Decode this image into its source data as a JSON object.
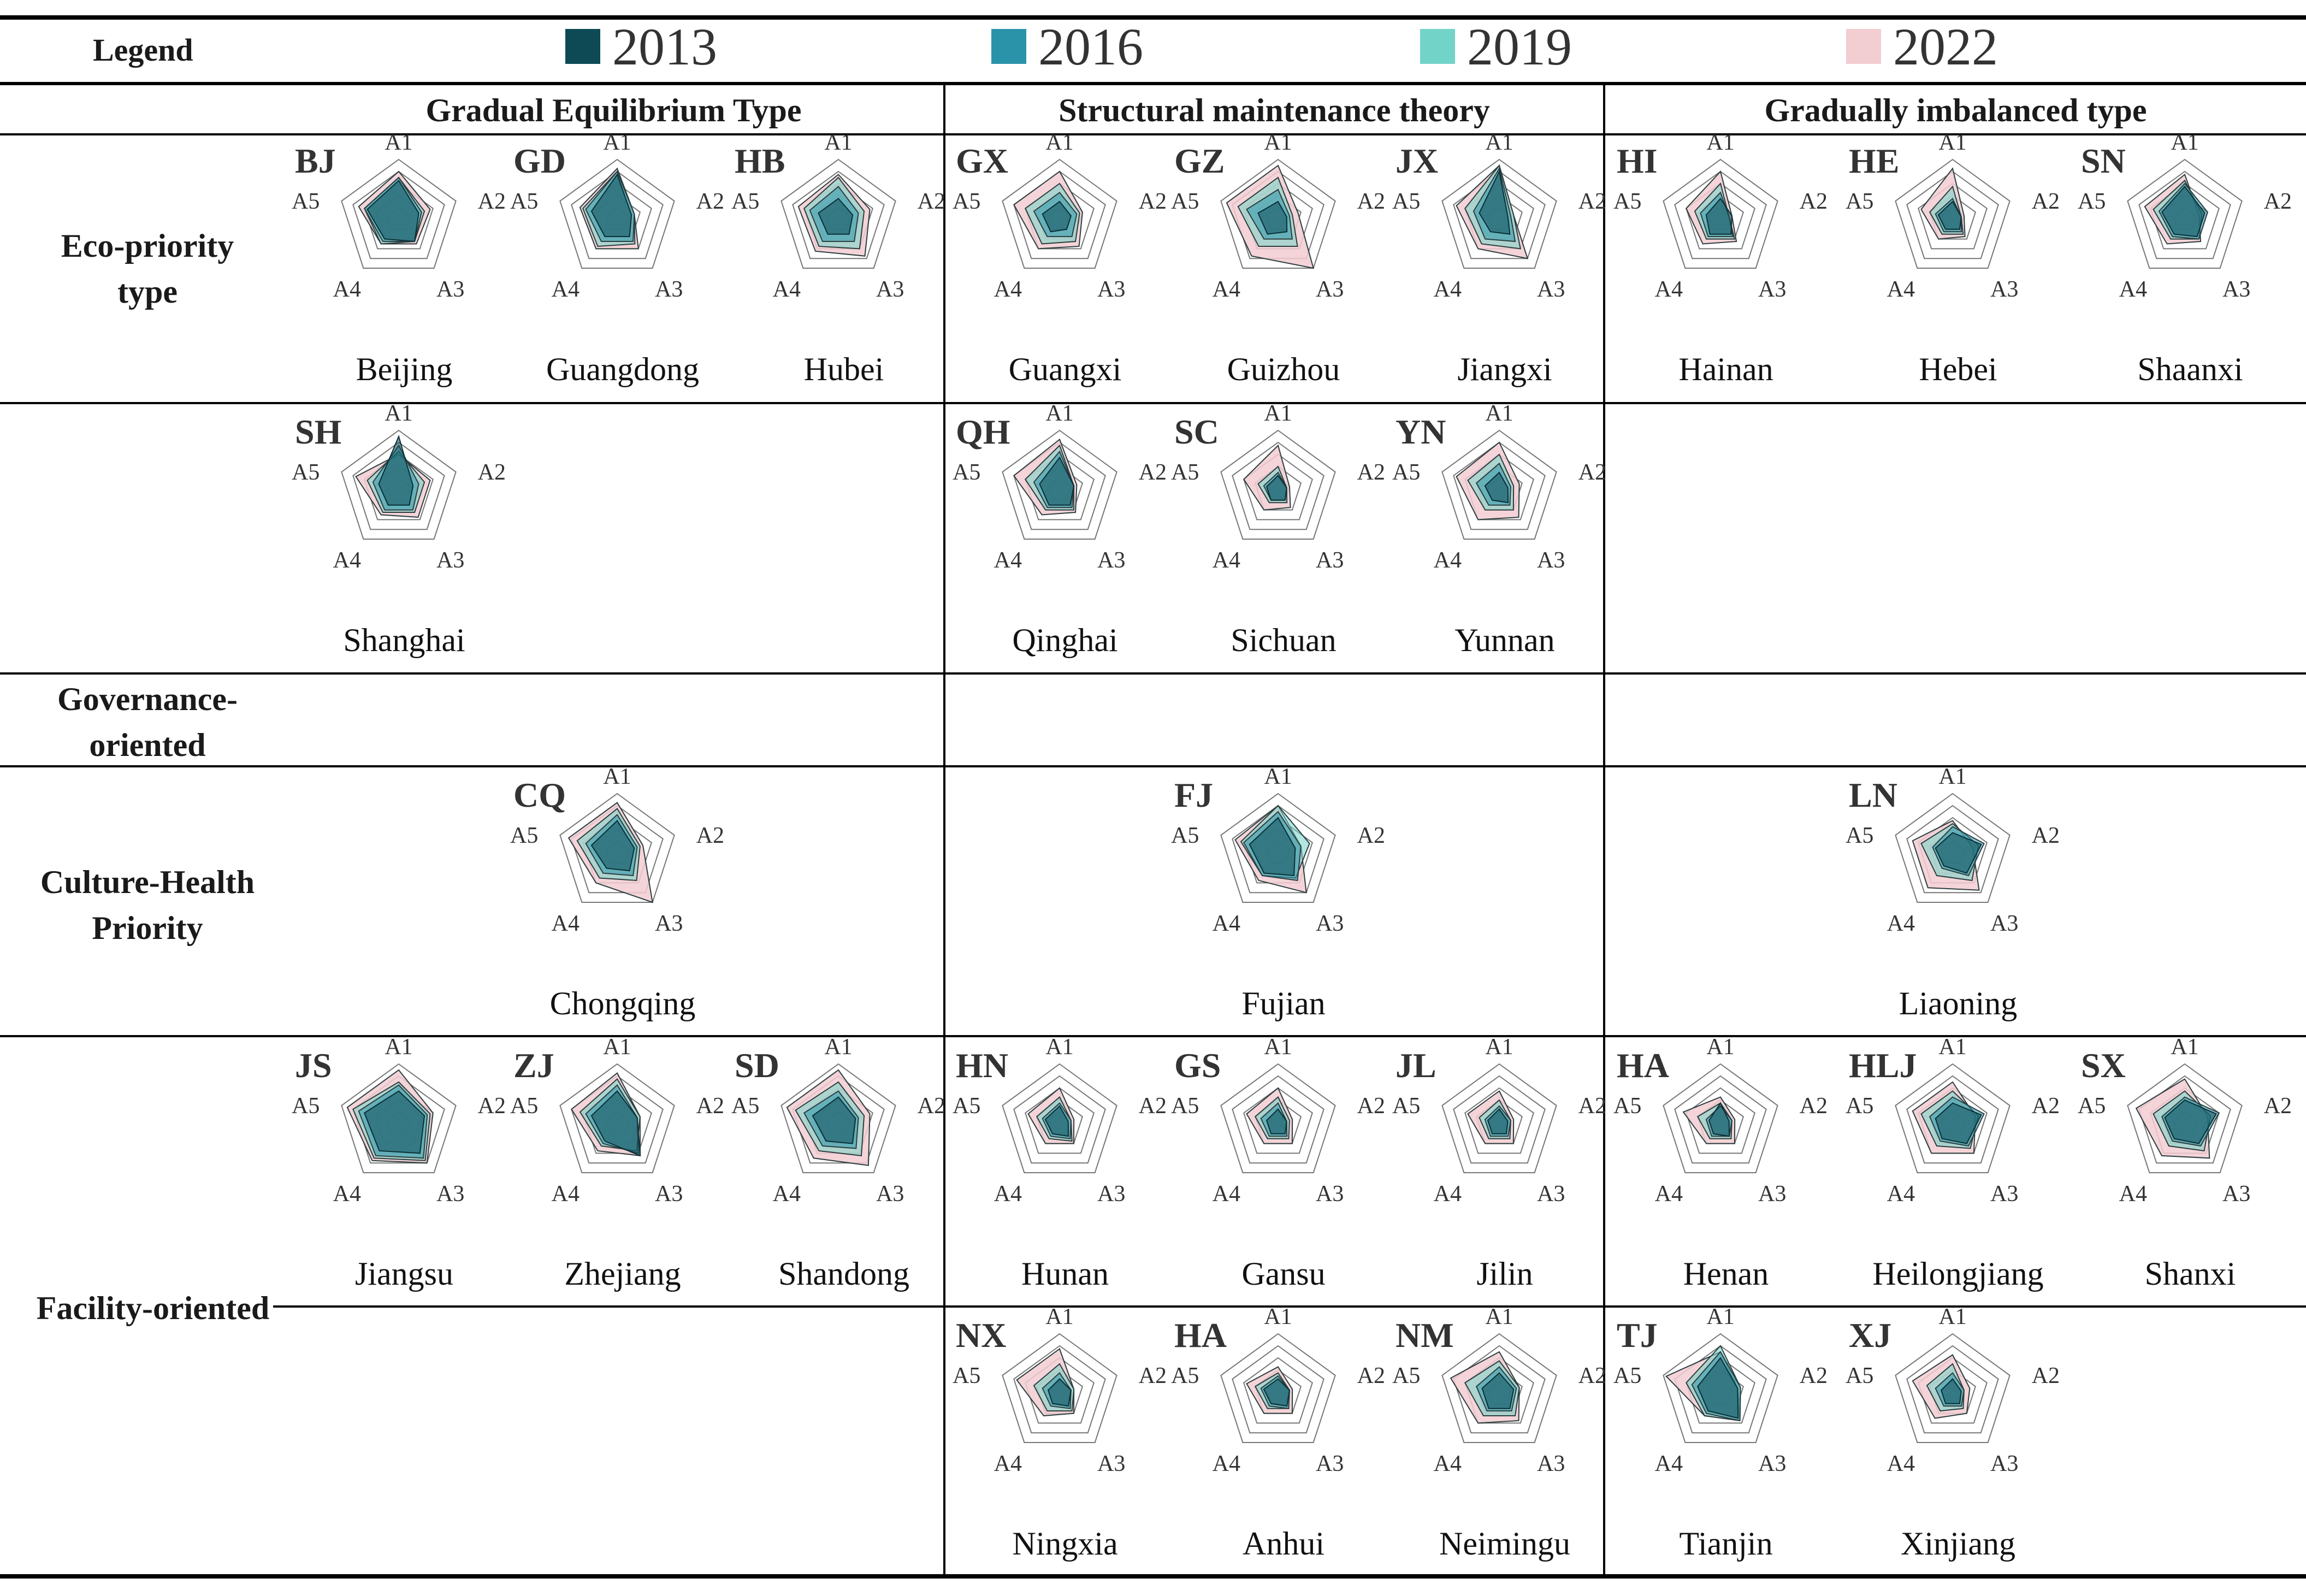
{
  "legend": {
    "label": "Legend",
    "years": [
      "2013",
      "2016",
      "2019",
      "2022"
    ],
    "colors": [
      "#0d4a56",
      "#2a93a9",
      "#72d3c9",
      "#f2cdd1"
    ]
  },
  "groups": [
    "Gradual Equilibrium Type",
    "Structural maintenance theory",
    "Gradually imbalanced type"
  ],
  "row_labels": {
    "eco": "Eco-priority type",
    "governance": "Governance-oriented",
    "culture": "Culture-Health Priority",
    "facility": "Facility-oriented"
  },
  "axes": [
    "A1",
    "A2",
    "A3",
    "A4",
    "A5"
  ],
  "chart_data": {
    "type": "radar",
    "axes": [
      "A1",
      "A2",
      "A3",
      "A4",
      "A5"
    ],
    "series_names": [
      "2013",
      "2016",
      "2019",
      "2022"
    ],
    "provinces": [
      {
        "code": "BJ",
        "name": "Beijing",
        "values": [
          [
            0.65,
            0.35,
            0.45,
            0.4,
            0.55
          ],
          [
            0.7,
            0.4,
            0.45,
            0.45,
            0.6
          ],
          [
            0.7,
            0.45,
            0.45,
            0.5,
            0.6
          ],
          [
            0.8,
            0.55,
            0.5,
            0.5,
            0.7
          ]
        ]
      },
      {
        "code": "GD",
        "name": "Guangdong",
        "values": [
          [
            0.75,
            0.25,
            0.35,
            0.35,
            0.45
          ],
          [
            0.8,
            0.3,
            0.45,
            0.45,
            0.55
          ],
          [
            0.8,
            0.3,
            0.5,
            0.55,
            0.6
          ],
          [
            0.85,
            0.3,
            0.6,
            0.6,
            0.65
          ]
        ]
      },
      {
        "code": "HB",
        "name": "Hubei",
        "values": [
          [
            0.35,
            0.25,
            0.3,
            0.3,
            0.35
          ],
          [
            0.55,
            0.35,
            0.45,
            0.45,
            0.5
          ],
          [
            0.7,
            0.45,
            0.6,
            0.55,
            0.6
          ],
          [
            0.75,
            0.55,
            0.75,
            0.65,
            0.7
          ]
        ]
      },
      {
        "code": "GX",
        "name": "Guangxi",
        "values": [
          [
            0.3,
            0.2,
            0.2,
            0.25,
            0.3
          ],
          [
            0.45,
            0.3,
            0.35,
            0.35,
            0.45
          ],
          [
            0.6,
            0.35,
            0.45,
            0.5,
            0.6
          ],
          [
            0.8,
            0.4,
            0.55,
            0.6,
            0.8
          ]
        ]
      },
      {
        "code": "GZ",
        "name": "Guizhou",
        "values": [
          [
            0.3,
            0.15,
            0.25,
            0.3,
            0.35
          ],
          [
            0.5,
            0.2,
            0.4,
            0.4,
            0.55
          ],
          [
            0.7,
            0.25,
            0.55,
            0.55,
            0.7
          ],
          [
            0.9,
            0.35,
            1.0,
            0.75,
            0.9
          ]
        ]
      },
      {
        "code": "JX",
        "name": "Jiangxi",
        "values": [
          [
            0.8,
            0.15,
            0.3,
            0.25,
            0.35
          ],
          [
            0.85,
            0.2,
            0.45,
            0.4,
            0.45
          ],
          [
            0.9,
            0.25,
            0.6,
            0.5,
            0.6
          ],
          [
            0.9,
            0.25,
            0.8,
            0.6,
            0.75
          ]
        ]
      },
      {
        "code": "HI",
        "name": "Hainan",
        "values": [
          [
            0.35,
            0.2,
            0.3,
            0.3,
            0.25
          ],
          [
            0.45,
            0.15,
            0.35,
            0.35,
            0.35
          ],
          [
            0.6,
            0.15,
            0.4,
            0.4,
            0.45
          ],
          [
            0.8,
            0.2,
            0.45,
            0.5,
            0.6
          ]
        ]
      },
      {
        "code": "HE",
        "name": "Hebei",
        "values": [
          [
            0.3,
            0.15,
            0.2,
            0.2,
            0.25
          ],
          [
            0.35,
            0.15,
            0.25,
            0.25,
            0.3
          ],
          [
            0.55,
            0.15,
            0.3,
            0.3,
            0.4
          ],
          [
            0.85,
            0.2,
            0.35,
            0.4,
            0.55
          ]
        ]
      },
      {
        "code": "SN",
        "name": "Shaanxi",
        "values": [
          [
            0.55,
            0.35,
            0.35,
            0.3,
            0.4
          ],
          [
            0.6,
            0.4,
            0.4,
            0.35,
            0.45
          ],
          [
            0.65,
            0.3,
            0.4,
            0.4,
            0.55
          ],
          [
            0.75,
            0.25,
            0.45,
            0.5,
            0.7
          ]
        ]
      },
      {
        "code": "SH",
        "name": "Shanghai",
        "values": [
          [
            0.9,
            0.25,
            0.3,
            0.3,
            0.35
          ],
          [
            0.75,
            0.35,
            0.4,
            0.4,
            0.45
          ],
          [
            0.65,
            0.45,
            0.45,
            0.45,
            0.55
          ],
          [
            0.6,
            0.55,
            0.55,
            0.5,
            0.75
          ]
        ]
      },
      {
        "code": "QH",
        "name": "Qinghai",
        "values": [
          [
            0.55,
            0.25,
            0.3,
            0.3,
            0.35
          ],
          [
            0.65,
            0.25,
            0.35,
            0.35,
            0.45
          ],
          [
            0.75,
            0.25,
            0.4,
            0.4,
            0.6
          ],
          [
            0.85,
            0.3,
            0.45,
            0.5,
            0.8
          ]
        ]
      },
      {
        "code": "SC",
        "name": "Sichuan",
        "values": [
          [
            0.25,
            0.15,
            0.2,
            0.2,
            0.2
          ],
          [
            0.3,
            0.15,
            0.2,
            0.2,
            0.25
          ],
          [
            0.4,
            0.15,
            0.25,
            0.25,
            0.35
          ],
          [
            0.75,
            0.2,
            0.35,
            0.4,
            0.6
          ]
        ]
      },
      {
        "code": "YN",
        "name": "Yunnan",
        "values": [
          [
            0.3,
            0.15,
            0.25,
            0.2,
            0.25
          ],
          [
            0.45,
            0.2,
            0.3,
            0.3,
            0.4
          ],
          [
            0.6,
            0.25,
            0.4,
            0.4,
            0.55
          ],
          [
            0.8,
            0.35,
            0.55,
            0.6,
            0.75
          ]
        ]
      },
      {
        "code": "CQ",
        "name": "Chongqing",
        "values": [
          [
            0.55,
            0.3,
            0.35,
            0.3,
            0.45
          ],
          [
            0.65,
            0.35,
            0.45,
            0.4,
            0.55
          ],
          [
            0.75,
            0.4,
            0.55,
            0.5,
            0.7
          ],
          [
            0.85,
            0.45,
            1.0,
            0.6,
            0.85
          ]
        ]
      },
      {
        "code": "FJ",
        "name": "Fujian",
        "values": [
          [
            0.6,
            0.3,
            0.45,
            0.4,
            0.5
          ],
          [
            0.7,
            0.4,
            0.55,
            0.45,
            0.6
          ],
          [
            0.8,
            0.55,
            0.5,
            0.45,
            0.65
          ],
          [
            0.8,
            0.4,
            0.8,
            0.55,
            0.75
          ]
        ]
      },
      {
        "code": "LN",
        "name": "Liaoning",
        "values": [
          [
            0.35,
            0.5,
            0.4,
            0.25,
            0.3
          ],
          [
            0.45,
            0.55,
            0.45,
            0.3,
            0.35
          ],
          [
            0.5,
            0.45,
            0.55,
            0.45,
            0.55
          ],
          [
            0.55,
            0.35,
            0.75,
            0.7,
            0.7
          ]
        ]
      },
      {
        "code": "JS",
        "name": "Jiangsu",
        "values": [
          [
            0.55,
            0.45,
            0.6,
            0.55,
            0.6
          ],
          [
            0.65,
            0.5,
            0.7,
            0.65,
            0.7
          ],
          [
            0.7,
            0.55,
            0.75,
            0.7,
            0.8
          ],
          [
            0.9,
            0.6,
            0.8,
            0.75,
            0.9
          ]
        ]
      },
      {
        "code": "ZJ",
        "name": "Zhejiang",
        "values": [
          [
            0.55,
            0.35,
            0.65,
            0.35,
            0.45
          ],
          [
            0.65,
            0.35,
            0.6,
            0.4,
            0.55
          ],
          [
            0.75,
            0.4,
            0.55,
            0.45,
            0.65
          ],
          [
            0.85,
            0.4,
            0.65,
            0.55,
            0.8
          ]
        ]
      },
      {
        "code": "SD",
        "name": "Shandong",
        "values": [
          [
            0.45,
            0.3,
            0.4,
            0.35,
            0.45
          ],
          [
            0.55,
            0.35,
            0.5,
            0.45,
            0.6
          ],
          [
            0.7,
            0.45,
            0.65,
            0.55,
            0.75
          ],
          [
            0.9,
            0.55,
            0.85,
            0.7,
            0.9
          ]
        ]
      },
      {
        "code": "HN",
        "name": "Hunan",
        "values": [
          [
            0.3,
            0.15,
            0.25,
            0.2,
            0.25
          ],
          [
            0.35,
            0.2,
            0.3,
            0.25,
            0.3
          ],
          [
            0.45,
            0.2,
            0.35,
            0.3,
            0.4
          ],
          [
            0.6,
            0.25,
            0.4,
            0.4,
            0.55
          ]
        ]
      },
      {
        "code": "GS",
        "name": "Gansu",
        "values": [
          [
            0.25,
            0.15,
            0.2,
            0.2,
            0.2
          ],
          [
            0.35,
            0.15,
            0.25,
            0.25,
            0.3
          ],
          [
            0.45,
            0.2,
            0.3,
            0.3,
            0.4
          ],
          [
            0.6,
            0.25,
            0.4,
            0.4,
            0.55
          ]
        ]
      },
      {
        "code": "JL",
        "name": "Jilin",
        "values": [
          [
            0.25,
            0.15,
            0.2,
            0.2,
            0.2
          ],
          [
            0.3,
            0.2,
            0.25,
            0.25,
            0.25
          ],
          [
            0.4,
            0.2,
            0.3,
            0.3,
            0.35
          ],
          [
            0.55,
            0.25,
            0.4,
            0.4,
            0.55
          ]
        ]
      },
      {
        "code": "HA",
        "name": "Henan",
        "values": [
          [
            0.35,
            0.15,
            0.25,
            0.2,
            0.2
          ],
          [
            0.3,
            0.2,
            0.25,
            0.25,
            0.25
          ],
          [
            0.35,
            0.2,
            0.3,
            0.3,
            0.4
          ],
          [
            0.45,
            0.25,
            0.4,
            0.4,
            0.65
          ]
        ]
      },
      {
        "code": "HLJ",
        "name": "Heilongjiang",
        "values": [
          [
            0.35,
            0.5,
            0.4,
            0.3,
            0.3
          ],
          [
            0.45,
            0.55,
            0.45,
            0.35,
            0.4
          ],
          [
            0.55,
            0.45,
            0.5,
            0.45,
            0.55
          ],
          [
            0.7,
            0.4,
            0.6,
            0.6,
            0.7
          ]
        ]
      },
      {
        "code": "SX",
        "name": "Shanxi",
        "values": [
          [
            0.4,
            0.55,
            0.4,
            0.3,
            0.35
          ],
          [
            0.45,
            0.6,
            0.45,
            0.35,
            0.4
          ],
          [
            0.55,
            0.45,
            0.55,
            0.45,
            0.55
          ],
          [
            0.75,
            0.4,
            0.7,
            0.65,
            0.85
          ]
        ]
      },
      {
        "code": "NX",
        "name": "Ningxia",
        "values": [
          [
            0.25,
            0.2,
            0.25,
            0.2,
            0.2
          ],
          [
            0.35,
            0.2,
            0.3,
            0.25,
            0.3
          ],
          [
            0.5,
            0.25,
            0.35,
            0.35,
            0.45
          ],
          [
            0.75,
            0.25,
            0.4,
            0.45,
            0.75
          ]
        ]
      },
      {
        "code": "HA",
        "name": "Anhui",
        "values": [
          [
            0.25,
            0.2,
            0.25,
            0.2,
            0.25
          ],
          [
            0.3,
            0.2,
            0.3,
            0.25,
            0.3
          ],
          [
            0.35,
            0.2,
            0.3,
            0.3,
            0.4
          ],
          [
            0.45,
            0.25,
            0.4,
            0.4,
            0.55
          ]
        ]
      },
      {
        "code": "NM",
        "name": "Neimingu",
        "values": [
          [
            0.35,
            0.25,
            0.3,
            0.3,
            0.3
          ],
          [
            0.45,
            0.3,
            0.35,
            0.35,
            0.4
          ],
          [
            0.55,
            0.35,
            0.45,
            0.45,
            0.6
          ],
          [
            0.7,
            0.35,
            0.55,
            0.6,
            0.85
          ]
        ]
      },
      {
        "code": "TJ",
        "name": "Tianjin",
        "values": [
          [
            0.6,
            0.3,
            0.5,
            0.35,
            0.4
          ],
          [
            0.7,
            0.35,
            0.55,
            0.4,
            0.5
          ],
          [
            0.8,
            0.35,
            0.55,
            0.45,
            0.6
          ],
          [
            0.7,
            0.3,
            0.55,
            0.45,
            0.95
          ]
        ]
      },
      {
        "code": "XJ",
        "name": "Xinjiang",
        "values": [
          [
            0.25,
            0.15,
            0.2,
            0.2,
            0.2
          ],
          [
            0.35,
            0.2,
            0.25,
            0.25,
            0.3
          ],
          [
            0.5,
            0.2,
            0.3,
            0.35,
            0.45
          ],
          [
            0.65,
            0.3,
            0.4,
            0.5,
            0.7
          ]
        ]
      }
    ]
  }
}
